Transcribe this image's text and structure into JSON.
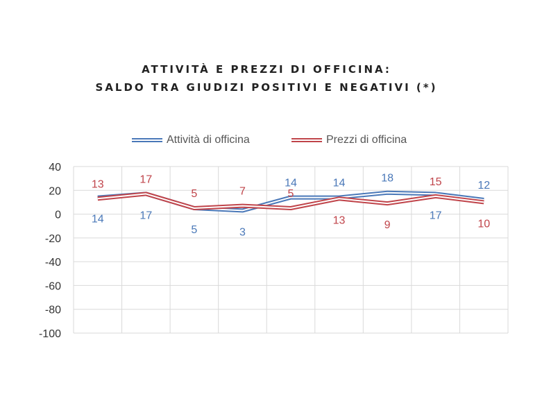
{
  "chart_data": {
    "type": "line",
    "title": [
      "ATTIVITÀ E PREZZI DI OFFICINA:",
      "SALDO TRA GIUDIZI POSITIVI E NEGATIVI (*)"
    ],
    "ylim": [
      -100,
      40
    ],
    "yticks": [
      40,
      20,
      0,
      -20,
      -40,
      -60,
      -80,
      -100
    ],
    "grid": true,
    "legend_position": "top",
    "categories": [
      "",
      "",
      "",
      "",
      "",
      "",
      "",
      "",
      ""
    ],
    "series": [
      {
        "name": "Attività di officina",
        "color": "#4a78b8",
        "values": [
          14,
          17,
          5,
          3,
          14,
          14,
          18,
          17,
          12
        ],
        "labels": [
          "14",
          "17",
          "5",
          "3",
          "14",
          "14",
          "18",
          "17",
          "12"
        ]
      },
      {
        "name": "Prezzi di officina",
        "color": "#c0444a",
        "values": [
          13,
          17,
          5,
          7,
          5,
          13,
          9,
          15,
          10
        ],
        "labels": [
          "13",
          "17",
          "5",
          "7",
          "5",
          "13",
          "9",
          "15",
          "10"
        ]
      }
    ]
  }
}
